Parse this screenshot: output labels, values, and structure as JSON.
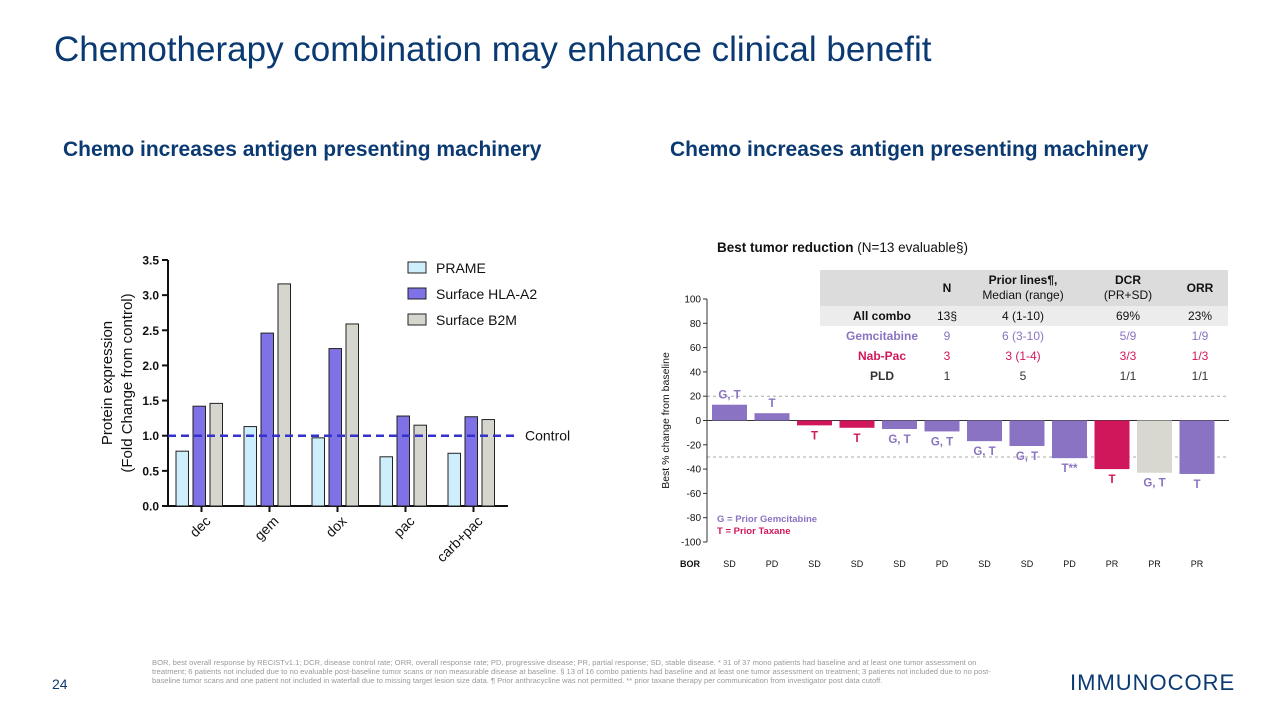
{
  "slide": {
    "title": "Chemotherapy combination may enhance clinical benefit",
    "subheading_left": "Chemo increases antigen presenting machinery",
    "subheading_right": "Chemo increases antigen presenting machinery",
    "page_number": "24",
    "logo": "IMMUNOCORE",
    "footnote": "BOR, best overall response by RECISTv1.1; DCR, disease control rate; ORR, overall response rate; PD, progressive disease; PR, partial response; SD, stable disease. * 31 of 37 mono patients had baseline and at least one tumor assessment on treatment; 6 patients not included due to no evaluable post-baseline tumor scans or non measurable disease at baseline. § 13 of 16 combo patients had baseline and at least one tumor assessment on treatment; 3 patients not included due to no post-baseline tumor scans and one patient not included in waterfall due to missing target lesion size data. ¶ Prior anthracycline was not permitted. ** prior taxane therapy per communication from investigator post data cutoff."
  },
  "colors": {
    "title": "#0b3a73",
    "prame": "#cdeefb",
    "hla": "#7f71e6",
    "b2m": "#d6d6ce",
    "control": "#3333cc",
    "gem": "#8a73c2",
    "nab": "#d1175b",
    "pld": "#d8d8d0"
  },
  "chart_data": [
    {
      "type": "bar",
      "ylabel_line1": "Protein expression",
      "ylabel_line2": "(Fold  Change from control)",
      "ylim": [
        0,
        3.5
      ],
      "yticks": [
        "0.0",
        "0.5",
        "1.0",
        "1.5",
        "2.0",
        "2.5",
        "3.0",
        "3.5"
      ],
      "categories": [
        "dec",
        "gem",
        "dox",
        "pac",
        "carb+pac"
      ],
      "series": [
        {
          "name": "PRAME",
          "values": [
            0.78,
            1.13,
            0.97,
            0.7,
            0.75
          ]
        },
        {
          "name": "Surface HLA-A2",
          "values": [
            1.42,
            2.46,
            2.24,
            1.28,
            1.27
          ]
        },
        {
          "name": "Surface B2M",
          "values": [
            1.46,
            3.16,
            2.59,
            1.15,
            1.23
          ]
        }
      ],
      "reference_line": {
        "value": 1.0,
        "label": "Control"
      },
      "legend_position": "top-right"
    },
    {
      "type": "bar",
      "title_bold": "Best tumor reduction",
      "title_rest": " (N=13 evaluable§)",
      "ylabel": "Best % change from baseline",
      "ylim": [
        -100,
        100
      ],
      "yticks": [
        "100",
        "80",
        "60",
        "40",
        "20",
        "0",
        "-20",
        "-40",
        "-60",
        "-80",
        "-100"
      ],
      "reference_lines": [
        20,
        -30
      ],
      "bor_label": "BOR",
      "bars": [
        {
          "value": 13,
          "group": "gem",
          "label": "G, T",
          "bor": "SD"
        },
        {
          "value": 6,
          "group": "gem",
          "label": "T",
          "bor": "PD"
        },
        {
          "value": -4,
          "group": "nab",
          "label": "T",
          "bor": "SD"
        },
        {
          "value": -6,
          "group": "nab",
          "label": "T",
          "bor": "SD"
        },
        {
          "value": -7,
          "group": "gem",
          "label": "G, T",
          "bor": "SD"
        },
        {
          "value": -9,
          "group": "gem",
          "label": "G, T",
          "bor": "PD"
        },
        {
          "value": -17,
          "group": "gem",
          "label": "G, T",
          "bor": "SD"
        },
        {
          "value": -21,
          "group": "gem",
          "label": "G, T",
          "bor": "SD"
        },
        {
          "value": -31,
          "group": "gem",
          "label": "T**",
          "bor": "PD"
        },
        {
          "value": -40,
          "group": "nab",
          "label": "T",
          "bor": "PR"
        },
        {
          "value": -43,
          "group": "pld",
          "label": "G, T",
          "bor": "PR"
        },
        {
          "value": -44,
          "group": "gem",
          "label": "T",
          "bor": "PR"
        }
      ],
      "key_g": "G = Prior Gemcitabine",
      "key_t": "T = Prior Taxane",
      "table": {
        "headers": [
          "",
          "N",
          "Prior lines¶,\nMedian (range)",
          "DCR\n(PR+SD)",
          "ORR"
        ],
        "rows": [
          {
            "name": "All combo",
            "group": "all",
            "cells": [
              "13§",
              "4 (1-10)",
              "69%",
              "23%"
            ]
          },
          {
            "name": "Gemcitabine",
            "group": "gem",
            "cells": [
              "9",
              "6 (3-10)",
              "5/9",
              "1/9"
            ]
          },
          {
            "name": "Nab-Pac",
            "group": "nab",
            "cells": [
              "3",
              "3 (1-4)",
              "3/3",
              "1/3"
            ]
          },
          {
            "name": "PLD",
            "group": "pld",
            "cells": [
              "1",
              "5",
              "1/1",
              "1/1"
            ]
          }
        ]
      }
    }
  ]
}
